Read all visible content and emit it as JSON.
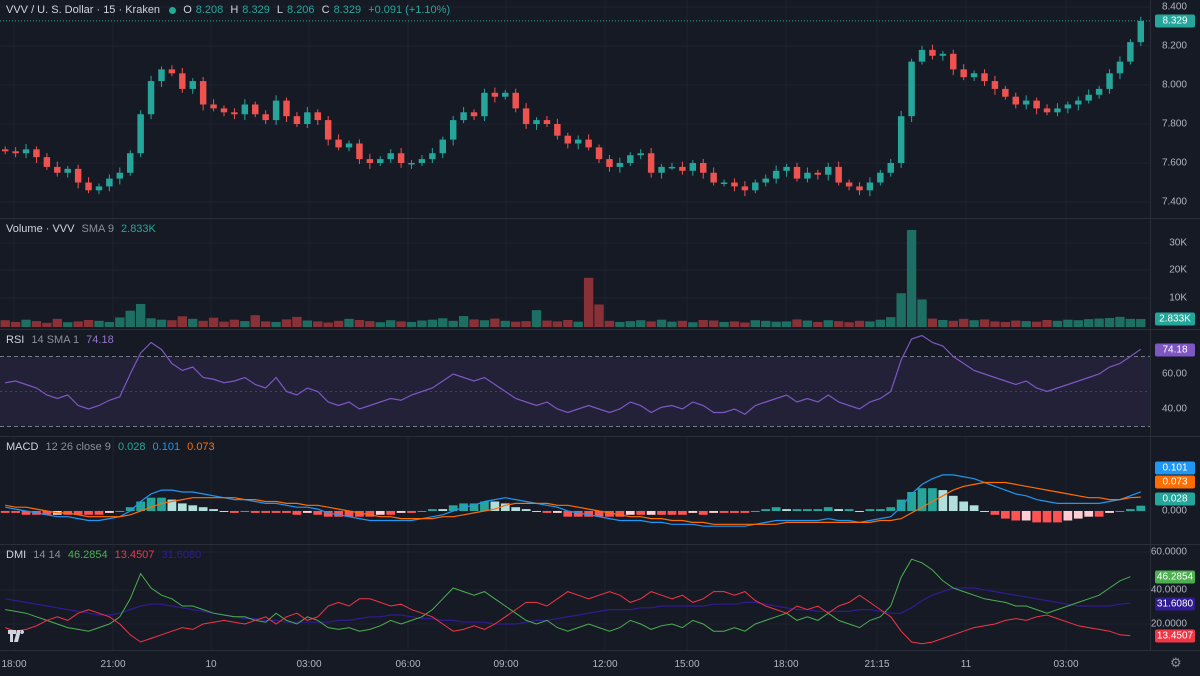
{
  "header": {
    "symbol": "VVV / U. S. Dollar · 15 · Kraken",
    "open_label": "O",
    "open": "8.208",
    "high_label": "H",
    "high": "8.329",
    "low_label": "L",
    "low": "8.206",
    "close_label": "C",
    "close": "8.329",
    "change": "+0.091 (+1.10%)"
  },
  "price_axis": {
    "ticks": [
      "8.400",
      "8.200",
      "8.000",
      "7.800",
      "7.600",
      "7.400"
    ],
    "last": "8.329"
  },
  "volume": {
    "label": "Volume · VVV",
    "params": "SMA 9",
    "value": "2.833K",
    "ticks": [
      "30K",
      "20K",
      "10K"
    ],
    "last": "2.833K"
  },
  "rsi": {
    "label": "RSI",
    "params": "14 SMA 1",
    "value": "74.18",
    "ticks": [
      "60.00",
      "40.00"
    ],
    "last": "74.18"
  },
  "macd": {
    "label": "MACD",
    "params": "12 26 close 9",
    "hist": "0.028",
    "macd": "0.101",
    "signal": "0.073",
    "ticks": [
      "0.000"
    ],
    "last_macd": "0.101",
    "last_signal": "0.073",
    "last_hist": "0.028"
  },
  "dmi": {
    "label": "DMI",
    "params": "14 14",
    "plus": "46.2854",
    "minus": "13.4507",
    "adx": "31.6080",
    "ticks": [
      "60.0000",
      "40.0000",
      "20.0000"
    ],
    "last_plus": "46.2854",
    "last_adx": "31.6080",
    "last_minus": "13.4507"
  },
  "time_axis": [
    "18:00",
    "21:00",
    "10",
    "03:00",
    "06:00",
    "09:00",
    "12:00",
    "15:00",
    "18:00",
    "21:15",
    "11",
    "03:00"
  ],
  "colors": {
    "up": "#26a69a",
    "down": "#ef5350",
    "rsi": "#7e57c2",
    "macd": "#2196f3",
    "signal": "#ff6d00",
    "plus_di": "#4caf50",
    "minus_di": "#f23645",
    "adx": "#311b92"
  },
  "icons": {
    "logo": "tradingview-logo-icon",
    "settings": "gear-icon"
  },
  "chart_data": {
    "type": "candlestick",
    "closes": [
      7.66,
      7.65,
      7.67,
      7.63,
      7.58,
      7.55,
      7.57,
      7.5,
      7.46,
      7.48,
      7.52,
      7.55,
      7.65,
      7.85,
      8.02,
      8.08,
      8.06,
      7.98,
      8.02,
      7.9,
      7.88,
      7.86,
      7.85,
      7.9,
      7.85,
      7.82,
      7.92,
      7.84,
      7.8,
      7.86,
      7.82,
      7.72,
      7.68,
      7.7,
      7.62,
      7.6,
      7.62,
      7.65,
      7.6,
      7.6,
      7.62,
      7.65,
      7.72,
      7.82,
      7.86,
      7.84,
      7.96,
      7.94,
      7.96,
      7.88,
      7.8,
      7.82,
      7.8,
      7.74,
      7.7,
      7.72,
      7.68,
      7.62,
      7.58,
      7.6,
      7.64,
      7.65,
      7.55,
      7.58,
      7.58,
      7.56,
      7.6,
      7.55,
      7.5,
      7.5,
      7.48,
      7.46,
      7.5,
      7.52,
      7.56,
      7.58,
      7.52,
      7.55,
      7.54,
      7.58,
      7.5,
      7.48,
      7.46,
      7.5,
      7.55,
      7.6,
      7.84,
      8.12,
      8.18,
      8.15,
      8.16,
      8.08,
      8.04,
      8.06,
      8.02,
      7.98,
      7.94,
      7.9,
      7.92,
      7.88,
      7.86,
      7.88,
      7.9,
      7.92,
      7.95,
      7.98,
      8.06,
      8.12,
      8.22,
      8.329
    ],
    "volume": [
      2.4,
      1.8,
      2.6,
      2.1,
      1.5,
      2.9,
      1.7,
      2.0,
      2.5,
      2.2,
      1.8,
      3.4,
      5.8,
      8.2,
      3.1,
      2.6,
      2.4,
      3.8,
      2.9,
      2.2,
      3.3,
      1.9,
      2.6,
      2.1,
      4.2,
      2.0,
      1.8,
      2.7,
      3.6,
      2.3,
      2.0,
      1.6,
      2.2,
      2.9,
      2.5,
      2.1,
      1.7,
      2.4,
      2.0,
      1.8,
      2.3,
      2.6,
      3.1,
      2.2,
      3.9,
      2.7,
      2.4,
      3.0,
      2.2,
      1.9,
      2.1,
      6.0,
      2.3,
      2.0,
      2.5,
      1.9,
      17.5,
      8.0,
      2.2,
      1.8,
      2.1,
      2.4,
      2.0,
      2.6,
      1.9,
      2.2,
      1.7,
      2.5,
      2.3,
      1.8,
      2.0,
      1.6,
      2.4,
      2.2,
      1.9,
      2.0,
      2.7,
      2.3,
      1.8,
      2.4,
      2.1,
      1.7,
      2.2,
      2.0,
      2.6,
      3.5,
      12.0,
      34.5,
      9.8,
      3.0,
      2.5,
      2.2,
      2.9,
      2.4,
      2.7,
      2.0,
      1.8,
      2.3,
      2.1,
      1.9,
      2.5,
      2.2,
      2.6,
      2.4,
      2.8,
      3.0,
      3.2,
      3.6,
      2.9,
      2.833
    ],
    "rsi": [
      55,
      56,
      54,
      52,
      48,
      46,
      48,
      42,
      40,
      42,
      45,
      47,
      60,
      72,
      78,
      74,
      66,
      62,
      64,
      58,
      57,
      55,
      56,
      58,
      54,
      52,
      58,
      50,
      48,
      52,
      50,
      44,
      42,
      44,
      40,
      42,
      44,
      46,
      45,
      48,
      50,
      52,
      56,
      60,
      58,
      56,
      58,
      54,
      50,
      46,
      44,
      42,
      44,
      40,
      38,
      40,
      42,
      40,
      38,
      40,
      44,
      42,
      38,
      41,
      42,
      40,
      44,
      42,
      38,
      38,
      40,
      37,
      42,
      44,
      46,
      48,
      44,
      46,
      44,
      48,
      44,
      42,
      40,
      44,
      46,
      50,
      68,
      80,
      82,
      78,
      76,
      70,
      66,
      62,
      60,
      58,
      56,
      54,
      56,
      52,
      50,
      52,
      54,
      56,
      58,
      60,
      64,
      66,
      70,
      74.18
    ],
    "macd": [
      0.02,
      0.01,
      0.0,
      -0.01,
      -0.02,
      -0.03,
      -0.03,
      -0.04,
      -0.05,
      -0.05,
      -0.04,
      -0.03,
      0.0,
      0.05,
      0.09,
      0.11,
      0.11,
      0.1,
      0.1,
      0.09,
      0.08,
      0.07,
      0.06,
      0.06,
      0.05,
      0.04,
      0.04,
      0.03,
      0.02,
      0.02,
      0.01,
      -0.01,
      -0.02,
      -0.03,
      -0.04,
      -0.05,
      -0.05,
      -0.05,
      -0.05,
      -0.05,
      -0.04,
      -0.03,
      -0.02,
      0.0,
      0.02,
      0.03,
      0.05,
      0.06,
      0.07,
      0.06,
      0.05,
      0.04,
      0.03,
      0.02,
      0.0,
      -0.01,
      -0.02,
      -0.03,
      -0.04,
      -0.05,
      -0.05,
      -0.05,
      -0.06,
      -0.06,
      -0.07,
      -0.07,
      -0.07,
      -0.08,
      -0.08,
      -0.08,
      -0.08,
      -0.08,
      -0.07,
      -0.06,
      -0.05,
      -0.05,
      -0.05,
      -0.05,
      -0.05,
      -0.04,
      -0.05,
      -0.05,
      -0.06,
      -0.05,
      -0.04,
      -0.03,
      0.02,
      0.09,
      0.14,
      0.17,
      0.19,
      0.19,
      0.18,
      0.17,
      0.15,
      0.13,
      0.11,
      0.09,
      0.08,
      0.06,
      0.05,
      0.04,
      0.04,
      0.04,
      0.04,
      0.04,
      0.05,
      0.06,
      0.08,
      0.101
    ],
    "signal": [
      0.03,
      0.02,
      0.02,
      0.01,
      0.0,
      -0.01,
      -0.01,
      -0.02,
      -0.03,
      -0.03,
      -0.03,
      -0.03,
      -0.02,
      0.0,
      0.02,
      0.04,
      0.05,
      0.06,
      0.07,
      0.07,
      0.07,
      0.07,
      0.07,
      0.06,
      0.06,
      0.05,
      0.05,
      0.04,
      0.04,
      0.03,
      0.03,
      0.02,
      0.01,
      0.0,
      -0.01,
      -0.02,
      -0.03,
      -0.03,
      -0.04,
      -0.04,
      -0.04,
      -0.04,
      -0.03,
      -0.03,
      -0.02,
      -0.01,
      0.0,
      0.01,
      0.03,
      0.04,
      0.04,
      0.04,
      0.04,
      0.03,
      0.03,
      0.02,
      0.01,
      0.0,
      -0.01,
      -0.02,
      -0.03,
      -0.03,
      -0.04,
      -0.04,
      -0.05,
      -0.05,
      -0.06,
      -0.06,
      -0.07,
      -0.07,
      -0.07,
      -0.07,
      -0.07,
      -0.07,
      -0.07,
      -0.06,
      -0.06,
      -0.06,
      -0.06,
      -0.06,
      -0.06,
      -0.06,
      -0.06,
      -0.06,
      -0.05,
      -0.05,
      -0.04,
      -0.01,
      0.02,
      0.05,
      0.08,
      0.11,
      0.13,
      0.14,
      0.15,
      0.15,
      0.15,
      0.14,
      0.13,
      0.12,
      0.11,
      0.1,
      0.09,
      0.08,
      0.07,
      0.07,
      0.06,
      0.06,
      0.07,
      0.073
    ],
    "plus_di": [
      28,
      27,
      26,
      24,
      22,
      20,
      18,
      17,
      16,
      18,
      20,
      24,
      34,
      48,
      40,
      36,
      34,
      30,
      30,
      28,
      26,
      25,
      24,
      24,
      22,
      21,
      26,
      22,
      20,
      24,
      22,
      18,
      17,
      18,
      16,
      17,
      19,
      22,
      20,
      22,
      24,
      28,
      34,
      40,
      38,
      36,
      38,
      34,
      30,
      26,
      22,
      20,
      22,
      18,
      16,
      18,
      20,
      18,
      16,
      18,
      22,
      20,
      17,
      19,
      20,
      18,
      22,
      20,
      16,
      16,
      18,
      16,
      20,
      22,
      24,
      26,
      22,
      24,
      22,
      26,
      22,
      20,
      18,
      22,
      24,
      30,
      46,
      56,
      54,
      50,
      44,
      40,
      38,
      36,
      34,
      33,
      32,
      30,
      30,
      28,
      26,
      28,
      30,
      32,
      34,
      36,
      40,
      44,
      46.2854
    ],
    "minus_di": [
      18,
      16,
      17,
      19,
      22,
      24,
      22,
      26,
      28,
      26,
      24,
      20,
      14,
      10,
      12,
      14,
      16,
      18,
      17,
      20,
      21,
      22,
      21,
      20,
      22,
      24,
      20,
      24,
      26,
      22,
      24,
      30,
      32,
      30,
      34,
      34,
      32,
      30,
      31,
      28,
      26,
      24,
      20,
      16,
      17,
      19,
      17,
      20,
      24,
      28,
      32,
      32,
      30,
      34,
      38,
      36,
      34,
      36,
      38,
      36,
      32,
      34,
      38,
      36,
      34,
      36,
      32,
      34,
      38,
      38,
      36,
      38,
      33,
      30,
      28,
      26,
      30,
      28,
      30,
      26,
      30,
      32,
      36,
      32,
      28,
      24,
      16,
      10,
      9,
      10,
      12,
      14,
      16,
      18,
      19,
      20,
      22,
      23,
      22,
      24,
      25,
      23,
      21,
      19,
      18,
      17,
      16,
      14,
      13.4507
    ],
    "adx": [
      34,
      33,
      32,
      31,
      30,
      29,
      28,
      27,
      26,
      25,
      25,
      26,
      28,
      30,
      31,
      31,
      30,
      29,
      28,
      27,
      26,
      25,
      24,
      23,
      23,
      22,
      22,
      21,
      21,
      21,
      21,
      21,
      22,
      22,
      23,
      24,
      24,
      25,
      25,
      24,
      23,
      23,
      22,
      22,
      21,
      21,
      21,
      20,
      20,
      20,
      21,
      22,
      22,
      23,
      24,
      25,
      26,
      27,
      28,
      28,
      28,
      29,
      29,
      30,
      30,
      30,
      30,
      30,
      31,
      31,
      31,
      32,
      32,
      31,
      30,
      29,
      28,
      28,
      27,
      27,
      27,
      27,
      28,
      28,
      27,
      26,
      26,
      29,
      33,
      36,
      38,
      40,
      40,
      40,
      39,
      38,
      37,
      36,
      35,
      34,
      33,
      32,
      31,
      30,
      30,
      30,
      30,
      31,
      31.608
    ]
  }
}
